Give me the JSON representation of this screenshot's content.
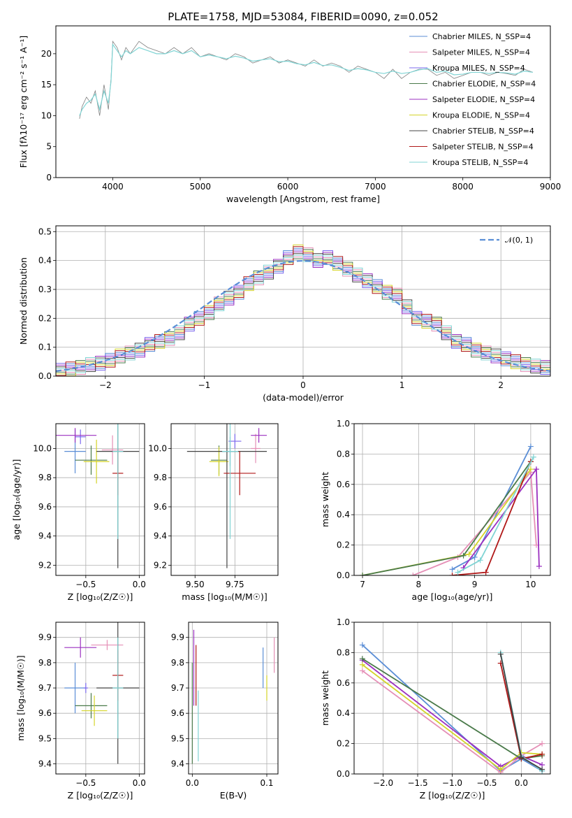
{
  "figure": {
    "title": "PLATE=1758, MJD=53084, FIBERID=0090, z=0.052"
  },
  "colors": {
    "Chabrier MILES": "#5b8ed6",
    "Salpeter MILES": "#e58fb6",
    "Kroupa MILES": "#7b68ee",
    "Chabrier ELODIE": "#4a7a4a",
    "Salpeter ELODIE": "#9b30c0",
    "Kroupa ELODIE": "#d4d42a",
    "Chabrier STELIB": "#444444",
    "Salpeter STELIB": "#b01818",
    "Kroupa STELIB": "#80d4d4"
  },
  "chart_data": [
    {
      "id": "spectrum",
      "type": "line",
      "xlabel": "wavelength [Angstrom, rest frame]",
      "ylabel": "Flux [fλ10⁻¹⁷ erg cm⁻² s⁻¹ A⁻¹]",
      "xlim": [
        3350,
        9000
      ],
      "ylim": [
        0,
        24.5
      ],
      "xticks": [
        4000,
        5000,
        6000,
        7000,
        8000,
        9000
      ],
      "yticks": [
        0,
        5,
        10,
        15,
        20
      ],
      "legend_position": "top-right",
      "legend": [
        "Chabrier MILES, N_SSP=4",
        "Salpeter MILES, N_SSP=4",
        "Kroupa MILES, N_SSP=4",
        "Chabrier ELODIE, N_SSP=4",
        "Salpeter ELODIE, N_SSP=4",
        "Kroupa ELODIE, N_SSP=4",
        "Chabrier STELIB, N_SSP=4",
        "Salpeter STELIB, N_SSP=4",
        "Kroupa STELIB, N_SSP=4"
      ],
      "data_color": "#808080",
      "x": [
        3620,
        3650,
        3700,
        3750,
        3800,
        3850,
        3900,
        3950,
        3980,
        4000,
        4050,
        4100,
        4150,
        4200,
        4300,
        4400,
        4500,
        4600,
        4700,
        4800,
        4900,
        5000,
        5100,
        5200,
        5300,
        5400,
        5500,
        5600,
        5700,
        5800,
        5900,
        6000,
        6100,
        6200,
        6300,
        6400,
        6500,
        6600,
        6700,
        6800,
        6900,
        7000,
        7100,
        7200,
        7300,
        7400,
        7500,
        7600,
        7700,
        7800,
        7900,
        8000,
        8100,
        8200,
        8300,
        8400,
        8500,
        8600,
        8700,
        8800
      ],
      "data_flux": [
        9.5,
        11.5,
        13,
        12,
        14,
        10,
        15,
        11,
        16,
        22,
        21,
        19,
        21,
        20,
        22,
        21,
        20.5,
        20,
        21,
        20,
        21,
        19.5,
        20,
        19.5,
        19,
        20,
        19.5,
        18.5,
        19,
        19.5,
        18.5,
        19,
        18.5,
        18,
        19,
        18,
        18.5,
        18,
        17,
        18,
        17.5,
        17,
        16,
        17.5,
        16,
        17,
        17.5,
        17.5,
        16.5,
        17,
        16,
        16.5,
        17,
        17,
        16.5,
        17,
        16.8,
        16.5,
        17.5,
        17
      ],
      "model_flux": [
        10,
        11,
        12,
        12.5,
        13.5,
        11,
        14,
        12,
        15.5,
        21.5,
        20.5,
        19.5,
        20.5,
        20,
        21,
        20.5,
        20,
        20,
        20.5,
        20,
        20.5,
        19.5,
        19.8,
        19.5,
        19.2,
        19.6,
        19.3,
        18.8,
        19,
        19.2,
        18.7,
        18.8,
        18.4,
        18.2,
        18.6,
        18.1,
        18.2,
        17.8,
        17.3,
        17.6,
        17.4,
        17,
        16.8,
        17.2,
        16.8,
        17,
        17.4,
        17.6,
        17,
        17.2,
        16.6,
        16.7,
        17,
        17,
        16.8,
        17,
        16.9,
        16.7,
        17.2,
        17
      ]
    },
    {
      "id": "residuals",
      "type": "line",
      "xlabel": "(data-model)/error",
      "ylabel": "Normed distribution",
      "xlim": [
        -2.5,
        2.5
      ],
      "ylim": [
        0,
        0.52
      ],
      "xticks": [
        -2,
        -1,
        0,
        1,
        2
      ],
      "yticks": [
        0.0,
        0.1,
        0.2,
        0.3,
        0.4,
        0.5
      ],
      "legend": [
        "𝒩(0, 1)"
      ],
      "legend_position": "top-right",
      "gaussian_color": "#5b8ed6",
      "bin_edges": [
        -2.5,
        -2.4,
        -2.3,
        -2.2,
        -2.1,
        -2.0,
        -1.9,
        -1.8,
        -1.7,
        -1.6,
        -1.5,
        -1.4,
        -1.3,
        -1.2,
        -1.1,
        -1.0,
        -0.9,
        -0.8,
        -0.7,
        -0.6,
        -0.5,
        -0.4,
        -0.3,
        -0.2,
        -0.1,
        0.0,
        0.1,
        0.2,
        0.3,
        0.4,
        0.5,
        0.6,
        0.7,
        0.8,
        0.9,
        1.0,
        1.1,
        1.2,
        1.3,
        1.4,
        1.5,
        1.6,
        1.7,
        1.8,
        1.9,
        2.0,
        2.1,
        2.2,
        2.3,
        2.4,
        2.5
      ],
      "hist": [
        0.02,
        0.025,
        0.03,
        0.04,
        0.045,
        0.055,
        0.07,
        0.08,
        0.09,
        0.11,
        0.12,
        0.13,
        0.15,
        0.18,
        0.2,
        0.22,
        0.25,
        0.27,
        0.29,
        0.32,
        0.34,
        0.36,
        0.38,
        0.41,
        0.43,
        0.42,
        0.4,
        0.41,
        0.39,
        0.37,
        0.35,
        0.33,
        0.31,
        0.29,
        0.28,
        0.24,
        0.2,
        0.19,
        0.18,
        0.15,
        0.12,
        0.11,
        0.09,
        0.08,
        0.07,
        0.06,
        0.05,
        0.04,
        0.035,
        0.03
      ]
    },
    {
      "id": "age_vs_Z",
      "type": "scatter",
      "xlabel": "Z [log₁₀(Z/Z☉)]",
      "ylabel": "age  [log₁₀(age/yr)]",
      "xlim": [
        -0.78,
        0.05
      ],
      "ylim": [
        9.13,
        10.17
      ],
      "xticks": [
        -0.5,
        0.0
      ],
      "xtick_labels": [
        "−0.5",
        "0.0"
      ],
      "yticks": [
        9.2,
        9.4,
        9.6,
        9.8,
        10.0
      ],
      "points": [
        {
          "c": "Chabrier MILES",
          "x": -0.6,
          "y": 9.98,
          "xe": 0.1,
          "ye": 0.15
        },
        {
          "c": "Salpeter MILES",
          "x": -0.25,
          "y": 9.99,
          "xe": 0.1,
          "ye": 0.1
        },
        {
          "c": "Kroupa MILES",
          "x": -0.55,
          "y": 10.08,
          "xe": 0.05,
          "ye": 0.05
        },
        {
          "c": "Chabrier ELODIE",
          "x": -0.45,
          "y": 9.92,
          "xe": 0.15,
          "ye": 0.1
        },
        {
          "c": "Salpeter ELODIE",
          "x": -0.6,
          "y": 10.09,
          "xe": 0.2,
          "ye": 0.05
        },
        {
          "c": "Kroupa ELODIE",
          "x": -0.4,
          "y": 9.91,
          "xe": 0.12,
          "ye": 0.15
        },
        {
          "c": "Chabrier STELIB",
          "x": -0.2,
          "y": 9.98,
          "xe": 0.2,
          "ye": 0.8
        },
        {
          "c": "Salpeter STELIB",
          "x": -0.2,
          "y": 9.83,
          "xe": 0.05,
          "ye": 0.15
        },
        {
          "c": "Kroupa STELIB",
          "x": -0.2,
          "y": 9.98,
          "xe": 0.05,
          "ye": 0.6
        }
      ]
    },
    {
      "id": "age_vs_mass",
      "type": "scatter",
      "xlabel": "mass [log₁₀(M/M☉)]",
      "ylabel": "",
      "xlim": [
        9.35,
        10.02
      ],
      "ylim": [
        9.13,
        10.17
      ],
      "xticks": [
        9.5,
        9.75
      ],
      "xtick_labels": [
        "9.50",
        "9.75"
      ],
      "yticks": [
        9.2,
        9.4,
        9.6,
        9.8,
        10.0
      ],
      "points": [
        {
          "c": "Chabrier MILES",
          "x": 9.72,
          "y": 9.98,
          "xe": 0.05,
          "ye": 0.1
        },
        {
          "c": "Salpeter MILES",
          "x": 9.88,
          "y": 10.0,
          "xe": 0.03,
          "ye": 0.1
        },
        {
          "c": "Kroupa MILES",
          "x": 9.75,
          "y": 10.05,
          "xe": 0.04,
          "ye": 0.05
        },
        {
          "c": "Chabrier ELODIE",
          "x": 9.65,
          "y": 9.92,
          "xe": 0.05,
          "ye": 0.1
        },
        {
          "c": "Salpeter ELODIE",
          "x": 9.9,
          "y": 10.09,
          "xe": 0.05,
          "ye": 0.05
        },
        {
          "c": "Kroupa ELODIE",
          "x": 9.65,
          "y": 9.91,
          "xe": 0.06,
          "ye": 0.1
        },
        {
          "c": "Chabrier STELIB",
          "x": 9.7,
          "y": 9.98,
          "xe": 0.25,
          "ye": 0.8
        },
        {
          "c": "Salpeter STELIB",
          "x": 9.78,
          "y": 9.83,
          "xe": 0.1,
          "ye": 0.15
        },
        {
          "c": "Kroupa STELIB",
          "x": 9.72,
          "y": 9.98,
          "xe": 0.05,
          "ye": 0.6
        }
      ]
    },
    {
      "id": "weight_vs_age",
      "type": "line",
      "xlabel": "age  [log₁₀(age/yr)]",
      "ylabel": "mass weight",
      "xlim": [
        6.85,
        10.35
      ],
      "ylim": [
        0,
        1.0
      ],
      "xticks": [
        7,
        8,
        9,
        10
      ],
      "yticks": [
        0.0,
        0.2,
        0.4,
        0.6,
        0.8,
        1.0
      ],
      "series": [
        {
          "c": "Chabrier MILES",
          "x": [
            8.6,
            9.0,
            10.0
          ],
          "y": [
            0.04,
            0.12,
            0.85
          ]
        },
        {
          "c": "Salpeter MILES",
          "x": [
            7.9,
            8.7,
            10.0,
            10.1
          ],
          "y": [
            0.0,
            0.12,
            0.68,
            0.2
          ]
        },
        {
          "c": "Salpeter ELODIE",
          "x": [
            8.8,
            10.1,
            10.15
          ],
          "y": [
            0.05,
            0.7,
            0.06
          ]
        },
        {
          "c": "Kroupa ELODIE",
          "x": [
            7.0,
            8.9,
            10.0
          ],
          "y": [
            0.0,
            0.14,
            0.7
          ]
        },
        {
          "c": "Chabrier ELODIE",
          "x": [
            7.0,
            8.8,
            10.0
          ],
          "y": [
            0.0,
            0.13,
            0.75
          ]
        },
        {
          "c": "Salpeter STELIB",
          "x": [
            8.6,
            9.2,
            10.0
          ],
          "y": [
            0.0,
            0.02,
            0.75
          ]
        },
        {
          "c": "Kroupa STELIB",
          "x": [
            8.7,
            9.1,
            10.05
          ],
          "y": [
            0.02,
            0.1,
            0.78
          ]
        }
      ]
    },
    {
      "id": "mass_vs_Z",
      "type": "scatter",
      "xlabel": "Z [log₁₀(Z/Z☉)]",
      "ylabel": "mass [log₁₀(M/M☉)]",
      "xlim": [
        -0.78,
        0.05
      ],
      "ylim": [
        9.36,
        9.96
      ],
      "xticks": [
        -0.5,
        0.0
      ],
      "xtick_labels": [
        "−0.5",
        "0.0"
      ],
      "yticks": [
        9.4,
        9.5,
        9.6,
        9.7,
        9.8,
        9.9
      ],
      "points": [
        {
          "c": "Chabrier MILES",
          "x": -0.6,
          "y": 9.7,
          "xe": 0.1,
          "ye": 0.1
        },
        {
          "c": "Salpeter MILES",
          "x": -0.3,
          "y": 9.87,
          "xe": 0.15,
          "ye": 0.02
        },
        {
          "c": "Kroupa MILES",
          "x": -0.5,
          "y": 9.7,
          "xe": 0.02,
          "ye": 0.02
        },
        {
          "c": "Chabrier ELODIE",
          "x": -0.45,
          "y": 9.63,
          "xe": 0.15,
          "ye": 0.05
        },
        {
          "c": "Salpeter ELODIE",
          "x": -0.55,
          "y": 9.86,
          "xe": 0.15,
          "ye": 0.04
        },
        {
          "c": "Kroupa ELODIE",
          "x": -0.42,
          "y": 9.61,
          "xe": 0.12,
          "ye": 0.06
        },
        {
          "c": "Chabrier STELIB",
          "x": -0.2,
          "y": 9.7,
          "xe": 0.2,
          "ye": 0.3
        },
        {
          "c": "Salpeter STELIB",
          "x": -0.2,
          "y": 9.75,
          "xe": 0.05,
          "ye": 0.1
        },
        {
          "c": "Kroupa STELIB",
          "x": -0.2,
          "y": 9.7,
          "xe": 0.05,
          "ye": 0.2
        }
      ]
    },
    {
      "id": "mass_vs_ebv",
      "type": "scatter",
      "xlabel": "E(B-V)",
      "ylabel": "",
      "xlim": [
        -0.005,
        0.115
      ],
      "ylim": [
        9.36,
        9.96
      ],
      "xticks": [
        0.0,
        0.1
      ],
      "xtick_labels": [
        "0.0",
        "0.1"
      ],
      "yticks": [
        9.4,
        9.5,
        9.6,
        9.7,
        9.8,
        9.9
      ],
      "points": [
        {
          "c": "Chabrier MILES",
          "x": 0.095,
          "y": 9.78,
          "xe": 0,
          "ye": 0.08
        },
        {
          "c": "Salpeter MILES",
          "x": 0.11,
          "y": 9.83,
          "xe": 0,
          "ye": 0.07
        },
        {
          "c": "Kroupa ELODIE",
          "x": 0.1,
          "y": 9.7,
          "xe": 0,
          "ye": 0.05
        },
        {
          "c": "Salpeter ELODIE",
          "x": 0.002,
          "y": 9.78,
          "xe": 0,
          "ye": 0.15
        },
        {
          "c": "Chabrier ELODIE",
          "x": 0.0,
          "y": 9.6,
          "xe": 0,
          "ye": 0.2
        },
        {
          "c": "Salpeter STELIB",
          "x": 0.005,
          "y": 9.75,
          "xe": 0,
          "ye": 0.12
        },
        {
          "c": "Kroupa STELIB",
          "x": 0.008,
          "y": 9.55,
          "xe": 0,
          "ye": 0.14
        }
      ]
    },
    {
      "id": "weight_vs_Z",
      "type": "line",
      "xlabel": "Z [log₁₀(Z/Z☉)]",
      "ylabel": "mass weight",
      "xlim": [
        -2.42,
        0.42
      ],
      "ylim": [
        0,
        1.0
      ],
      "xticks": [
        -2.0,
        -1.5,
        -1.0,
        -0.5,
        0.0
      ],
      "xtick_labels": [
        "−2.0",
        "−1.5",
        "−1.0",
        "−0.5",
        "0.0"
      ],
      "yticks": [
        0.0,
        0.2,
        0.4,
        0.6,
        0.8,
        1.0
      ],
      "series": [
        {
          "c": "Chabrier MILES",
          "x": [
            -2.3,
            -0.3,
            0.0,
            0.3
          ],
          "y": [
            0.85,
            0.02,
            0.1,
            0.02
          ]
        },
        {
          "c": "Salpeter MILES",
          "x": [
            -2.3,
            -0.3,
            0.0,
            0.3
          ],
          "y": [
            0.68,
            0.01,
            0.12,
            0.2
          ]
        },
        {
          "c": "Salpeter ELODIE",
          "x": [
            -2.3,
            -0.3,
            0.0,
            0.3
          ],
          "y": [
            0.75,
            0.05,
            0.12,
            0.06
          ]
        },
        {
          "c": "Kroupa ELODIE",
          "x": [
            -2.3,
            -0.3,
            0.0,
            0.3
          ],
          "y": [
            0.72,
            0.03,
            0.14,
            0.13
          ]
        },
        {
          "c": "Chabrier ELODIE",
          "x": [
            -2.3,
            0.0,
            0.3
          ],
          "y": [
            0.76,
            0.1,
            0.12
          ]
        },
        {
          "c": "Salpeter STELIB",
          "x": [
            -0.3,
            0.0,
            0.3
          ],
          "y": [
            0.73,
            0.1,
            0.13
          ]
        },
        {
          "c": "Kroupa STELIB",
          "x": [
            -0.3,
            0.0,
            0.3
          ],
          "y": [
            0.8,
            0.12,
            0.02
          ]
        },
        {
          "c": "Chabrier STELIB",
          "x": [
            -0.3,
            0.0,
            0.3
          ],
          "y": [
            0.79,
            0.11,
            0.03
          ]
        }
      ]
    }
  ]
}
